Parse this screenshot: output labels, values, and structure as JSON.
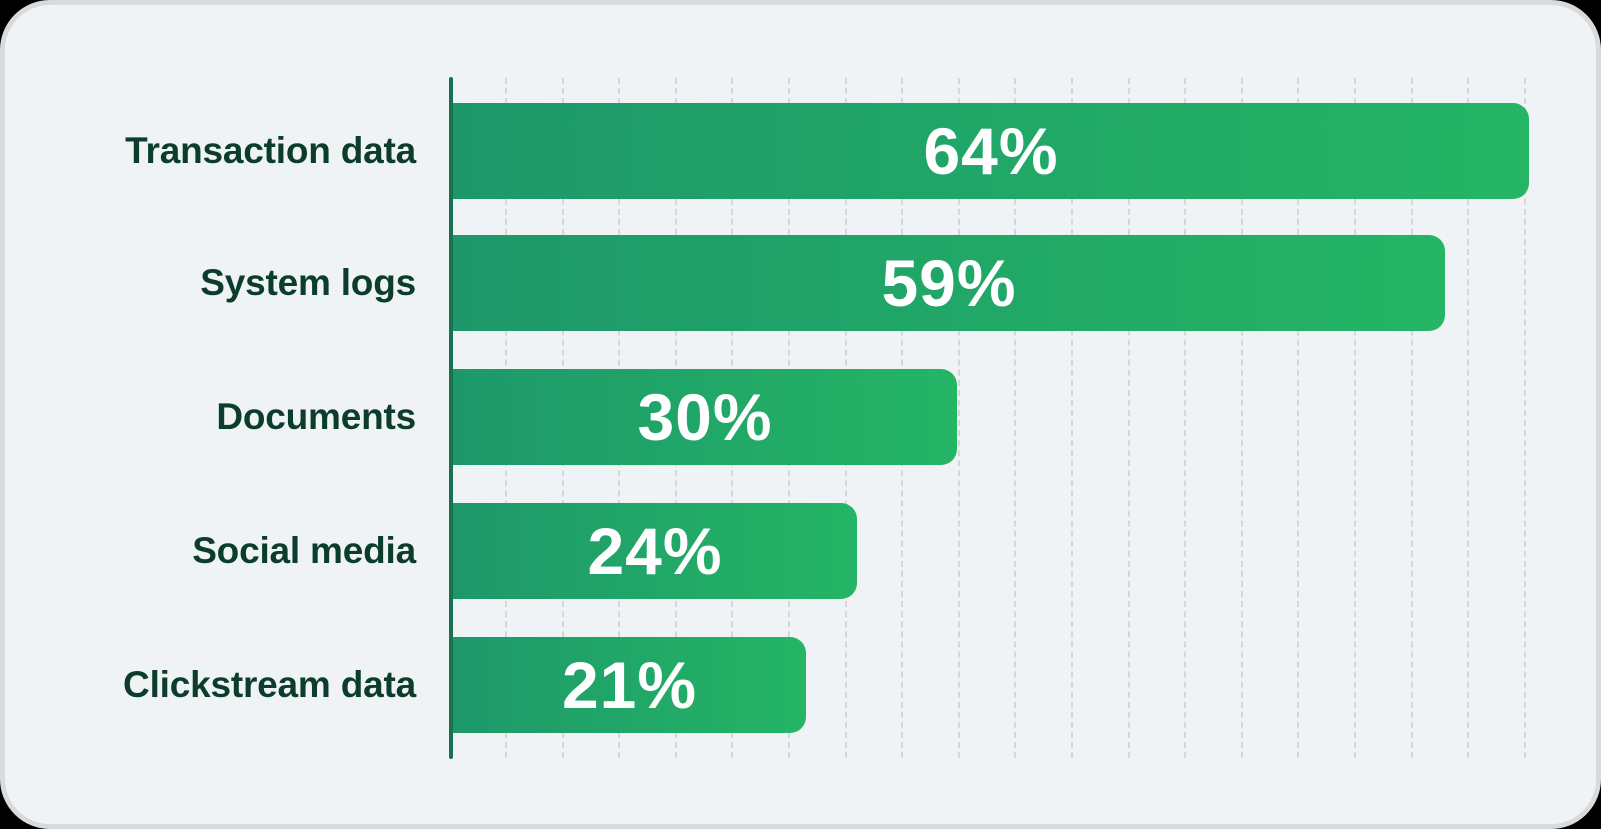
{
  "chart_data": {
    "type": "bar",
    "orientation": "horizontal",
    "title": "",
    "xlabel": "",
    "ylabel": "",
    "categories": [
      "Transaction data",
      "System logs",
      "Documents",
      "Social media",
      "Clickstream data"
    ],
    "values": [
      64,
      59,
      30,
      24,
      21
    ],
    "value_labels": [
      "64%",
      "59%",
      "30%",
      "24%",
      "21%"
    ],
    "unit": "%",
    "xlim": [
      0,
      64
    ],
    "grid": true,
    "legend": null
  },
  "colors": {
    "bar_gradient_start": "#1e986b",
    "bar_gradient_end": "#25b565",
    "axis": "#17734f",
    "label_text": "#0b3d2a",
    "value_text": "#ffffff",
    "background": "#eff3f6"
  },
  "bars": [
    {
      "label": "Transaction data",
      "value_label": "64%"
    },
    {
      "label": "System logs",
      "value_label": "59%"
    },
    {
      "label": "Documents",
      "value_label": "30%"
    },
    {
      "label": "Social media",
      "value_label": "24%"
    },
    {
      "label": "Clickstream data",
      "value_label": "21%"
    }
  ]
}
